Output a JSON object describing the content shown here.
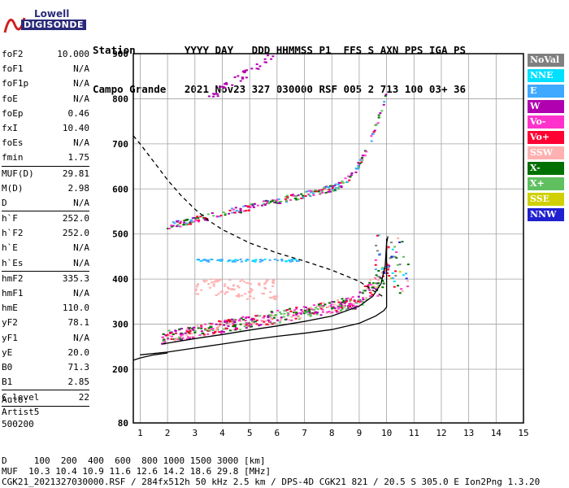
{
  "logo": {
    "line1": "Lowell",
    "line2": "DIGISONDE"
  },
  "header": {
    "labels": "Station        YYYY DAY   DDD HHMMSS P1  FFS S AXN PPS IGA PS",
    "values": "Campo Grande   2021 Nov23 327 030000 RSF 005 2 713 100 03+ 36"
  },
  "params": [
    {
      "k": "foF2",
      "v": "10.000"
    },
    {
      "k": "foF1",
      "v": "N/A"
    },
    {
      "k": "foF1p",
      "v": "N/A"
    },
    {
      "k": "foE",
      "v": "N/A"
    },
    {
      "k": "foEp",
      "v": "0.46"
    },
    {
      "k": "fxI",
      "v": "10.40"
    },
    {
      "k": "foEs",
      "v": "N/A"
    },
    {
      "k": "fmin",
      "v": "1.75"
    },
    {
      "k": "MUF(D)",
      "v": "29.81"
    },
    {
      "k": "M(D)",
      "v": "2.98"
    },
    {
      "k": "D",
      "v": "N/A"
    },
    {
      "k": "h`F",
      "v": "252.0"
    },
    {
      "k": "h`F2",
      "v": "252.0"
    },
    {
      "k": "h`E",
      "v": "N/A"
    },
    {
      "k": "h`Es",
      "v": "N/A"
    },
    {
      "k": "hmF2",
      "v": "335.3"
    },
    {
      "k": "hmF1",
      "v": "N/A"
    },
    {
      "k": "hmE",
      "v": "110.0"
    },
    {
      "k": "yF2",
      "v": "78.1"
    },
    {
      "k": "yF1",
      "v": "N/A"
    },
    {
      "k": "yE",
      "v": "20.0"
    },
    {
      "k": "B0",
      "v": "71.3"
    },
    {
      "k": "B1",
      "v": "2.85"
    },
    {
      "k": "C-level",
      "v": "22"
    }
  ],
  "auto": {
    "l1": "Auto:",
    "l2": "Artist5",
    "l3": "500200"
  },
  "legend": [
    {
      "label": "NoVal",
      "color": "#808080"
    },
    {
      "label": "NNE",
      "color": "#00e0ff"
    },
    {
      "label": "E",
      "color": "#3fa9ff"
    },
    {
      "label": "W",
      "color": "#b000b0"
    },
    {
      "label": "Vo-",
      "color": "#ff33cc"
    },
    {
      "label": "Vo+",
      "color": "#ff0033"
    },
    {
      "label": "SSW",
      "color": "#ffb0b0"
    },
    {
      "label": "X-",
      "color": "#007000"
    },
    {
      "label": "X+",
      "color": "#60c060"
    },
    {
      "label": "SSE",
      "color": "#d0d000"
    },
    {
      "label": "NNW",
      "color": "#2020d0"
    }
  ],
  "footer": {
    "d_line": "D     100  200  400  600  800 1000 1500 3000 [km]",
    "muf_line": "MUF  10.3 10.4 10.9 11.6 12.6 14.2 18.6 29.8 [MHz]",
    "file_line": "CGK21_2021327030000.RSF / 284fx512h 50 kHz 2.5 km / DPS-4D CGK21 821 / 20.5 S 305.0 E Ion2Png 1.3.20"
  },
  "chart_data": {
    "type": "scatter",
    "xlim": [
      0.75,
      15
    ],
    "ylim": [
      80,
      900
    ],
    "x_ticks": [
      1,
      2,
      3,
      4,
      5,
      6,
      7,
      8,
      9,
      10,
      11,
      12,
      13,
      14,
      15
    ],
    "y_ticks": [
      80,
      200,
      300,
      400,
      500,
      600,
      700,
      800,
      900
    ],
    "grid": true,
    "series": [
      {
        "name": "profile",
        "style": "solid",
        "color": "#000000",
        "points": [
          [
            1.0,
            232
          ],
          [
            2.0,
            238
          ],
          [
            3.0,
            247
          ],
          [
            4.0,
            256
          ],
          [
            5.0,
            265
          ],
          [
            6.0,
            273
          ],
          [
            7.0,
            280
          ],
          [
            8.0,
            288
          ],
          [
            9.0,
            302
          ],
          [
            9.6,
            318
          ],
          [
            9.9,
            330
          ],
          [
            10.0,
            338
          ],
          [
            10.0,
            360
          ],
          [
            10.0,
            420
          ],
          [
            10.0,
            490
          ]
        ]
      },
      {
        "name": "F-trace",
        "style": "dashed",
        "color": "#000000",
        "points": [
          [
            0.75,
            718
          ],
          [
            1.0,
            700
          ],
          [
            1.5,
            660
          ],
          [
            2.0,
            620
          ],
          [
            2.5,
            585
          ],
          [
            3.0,
            555
          ],
          [
            3.5,
            530
          ],
          [
            4.0,
            510
          ],
          [
            5.0,
            480
          ],
          [
            6.0,
            458
          ],
          [
            7.0,
            440
          ],
          [
            8.0,
            420
          ],
          [
            9.0,
            395
          ],
          [
            9.5,
            375
          ],
          [
            9.9,
            360
          ]
        ]
      },
      {
        "name": "lower-left",
        "style": "solid",
        "color": "#000000",
        "points": [
          [
            0.75,
            220
          ],
          [
            1.0,
            225
          ],
          [
            1.5,
            232
          ],
          [
            2.0,
            236
          ]
        ]
      },
      {
        "name": "F2-o-trace",
        "style": "solid",
        "color": "#000000",
        "points": [
          [
            1.8,
            256
          ],
          [
            3.0,
            268
          ],
          [
            4.0,
            277
          ],
          [
            5.0,
            287
          ],
          [
            6.0,
            296
          ],
          [
            7.0,
            306
          ],
          [
            8.0,
            318
          ],
          [
            9.0,
            340
          ],
          [
            9.5,
            362
          ],
          [
            9.8,
            390
          ],
          [
            9.95,
            430
          ],
          [
            10.0,
            480
          ],
          [
            10.05,
            495
          ]
        ]
      }
    ]
  }
}
